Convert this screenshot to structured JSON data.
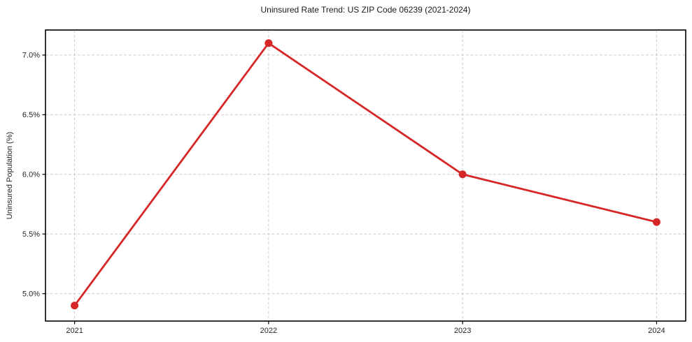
{
  "chart_data": {
    "type": "line",
    "title": "Uninsured Rate Trend: US ZIP Code 06239 (2021-2024)",
    "xlabel": "",
    "ylabel": "Uninsured Population (%)",
    "x": [
      2021,
      2022,
      2023,
      2024
    ],
    "categories": [
      "2021",
      "2022",
      "2023",
      "2024"
    ],
    "values": [
      4.9,
      7.1,
      6.0,
      5.6
    ],
    "y_tick_values": [
      5.0,
      5.5,
      6.0,
      6.5,
      7.0
    ],
    "y_tick_labels": [
      "5.0%",
      "5.5%",
      "6.0%",
      "6.5%",
      "7.0%"
    ],
    "x_tick_labels": [
      "2021",
      "2022",
      "2023",
      "2024"
    ],
    "ylim": [
      4.77,
      7.21
    ],
    "xlim": [
      2020.85,
      2024.15
    ],
    "grid": true,
    "legend": false,
    "line_color": "#d62728",
    "marker_color": "#d62728",
    "grid_color": "#cccccc",
    "axis_color": "#000000",
    "text_color": "#262626"
  }
}
